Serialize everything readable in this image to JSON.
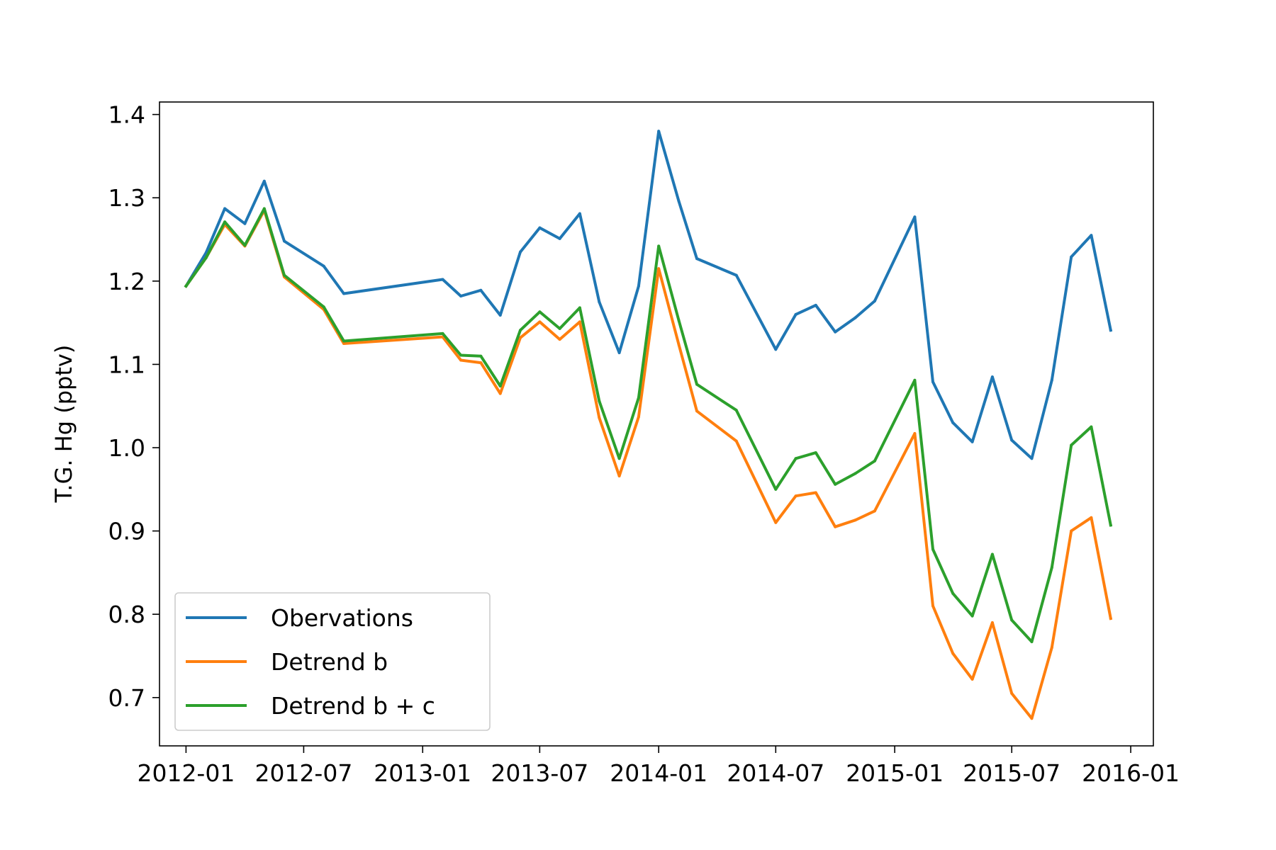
{
  "chart_data": {
    "type": "line",
    "title": "",
    "xlabel": "",
    "ylabel": "T.G. Hg (pptv)",
    "xlim": [
      "2011-11-21",
      "2016-02-05"
    ],
    "ylim": [
      0.642,
      1.415
    ],
    "grid": false,
    "legend_position": "lower-left",
    "x_ticks": [
      "2012-01",
      "2012-07",
      "2013-01",
      "2013-07",
      "2014-01",
      "2014-07",
      "2015-01",
      "2015-07",
      "2016-01"
    ],
    "y_ticks": [
      "0.7",
      "0.8",
      "0.9",
      "1.0",
      "1.1",
      "1.2",
      "1.3",
      "1.4"
    ],
    "x": [
      "2012-01-01",
      "2012-02-01",
      "2012-03-01",
      "2012-04-01",
      "2012-05-01",
      "2012-06-01",
      "2012-08-01",
      "2012-09-01",
      "2013-02-01",
      "2013-03-01",
      "2013-04-01",
      "2013-05-01",
      "2013-06-01",
      "2013-07-01",
      "2013-08-01",
      "2013-09-01",
      "2013-10-01",
      "2013-11-01",
      "2013-12-01",
      "2014-01-01",
      "2014-02-01",
      "2014-03-01",
      "2014-05-01",
      "2014-07-01",
      "2014-08-01",
      "2014-09-01",
      "2014-10-01",
      "2014-11-01",
      "2014-12-01",
      "2015-02-01",
      "2015-03-01",
      "2015-04-01",
      "2015-05-01",
      "2015-06-01",
      "2015-07-01",
      "2015-08-01",
      "2015-09-01",
      "2015-10-01",
      "2015-11-01",
      "2015-12-01"
    ],
    "series": [
      {
        "name": "Obervations",
        "color": "#1f77b4",
        "values": [
          1.194,
          1.234,
          1.287,
          1.269,
          1.32,
          1.248,
          1.218,
          1.185,
          1.202,
          1.182,
          1.189,
          1.159,
          1.235,
          1.264,
          1.251,
          1.281,
          1.175,
          1.114,
          1.194,
          1.38,
          1.296,
          1.227,
          1.207,
          1.118,
          1.16,
          1.171,
          1.139,
          1.156,
          1.176,
          1.277,
          1.079,
          1.03,
          1.007,
          1.085,
          1.009,
          0.987,
          1.081,
          1.229,
          1.255,
          1.141
        ]
      },
      {
        "name": "Detrend b",
        "color": "#ff7f0e",
        "values": [
          1.194,
          1.228,
          1.268,
          1.242,
          1.285,
          1.205,
          1.166,
          1.125,
          1.133,
          1.105,
          1.102,
          1.065,
          1.132,
          1.151,
          1.13,
          1.151,
          1.036,
          0.966,
          1.037,
          1.215,
          1.124,
          1.044,
          1.008,
          0.91,
          0.942,
          0.946,
          0.905,
          0.913,
          0.924,
          1.017,
          0.81,
          0.753,
          0.722,
          0.79,
          0.705,
          0.675,
          0.76,
          0.9,
          0.916,
          0.795
        ]
      },
      {
        "name": "Detrend b + c",
        "color": "#2ca02c",
        "values": [
          1.194,
          1.228,
          1.271,
          1.243,
          1.287,
          1.207,
          1.169,
          1.128,
          1.137,
          1.111,
          1.11,
          1.074,
          1.141,
          1.163,
          1.143,
          1.168,
          1.056,
          0.987,
          1.06,
          1.242,
          1.153,
          1.076,
          1.045,
          0.95,
          0.987,
          0.994,
          0.956,
          0.969,
          0.984,
          1.081,
          0.878,
          0.825,
          0.798,
          0.872,
          0.793,
          0.767,
          0.856,
          1.003,
          1.025,
          0.907
        ]
      }
    ]
  }
}
